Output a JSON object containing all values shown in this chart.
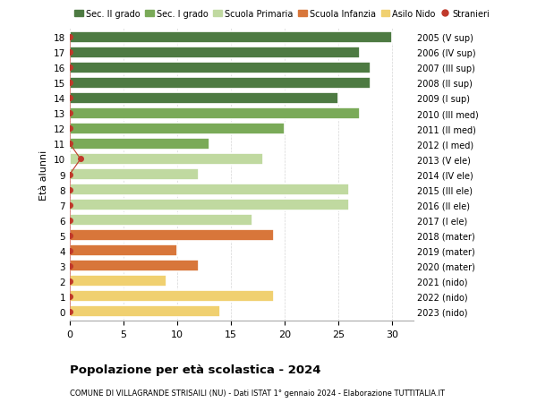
{
  "ages": [
    18,
    17,
    16,
    15,
    14,
    13,
    12,
    11,
    10,
    9,
    8,
    7,
    6,
    5,
    4,
    3,
    2,
    1,
    0
  ],
  "values": [
    30,
    27,
    28,
    28,
    25,
    27,
    20,
    13,
    18,
    12,
    26,
    26,
    17,
    19,
    10,
    12,
    9,
    19,
    14
  ],
  "stranieri": [
    0,
    0,
    0,
    0,
    0,
    0,
    0,
    0,
    1,
    0,
    0,
    0,
    0,
    0,
    0,
    0,
    0,
    0,
    0
  ],
  "right_labels": [
    "2005 (V sup)",
    "2006 (IV sup)",
    "2007 (III sup)",
    "2008 (II sup)",
    "2009 (I sup)",
    "2010 (III med)",
    "2011 (II med)",
    "2012 (I med)",
    "2013 (V ele)",
    "2014 (IV ele)",
    "2015 (III ele)",
    "2016 (II ele)",
    "2017 (I ele)",
    "2018 (mater)",
    "2019 (mater)",
    "2020 (mater)",
    "2021 (nido)",
    "2022 (nido)",
    "2023 (nido)"
  ],
  "bar_colors": [
    "#4d7a42",
    "#4d7a42",
    "#4d7a42",
    "#4d7a42",
    "#4d7a42",
    "#7aaa58",
    "#7aaa58",
    "#7aaa58",
    "#c0d9a0",
    "#c0d9a0",
    "#c0d9a0",
    "#c0d9a0",
    "#c0d9a0",
    "#d8763a",
    "#d8763a",
    "#d8763a",
    "#f0d070",
    "#f0d070",
    "#f0d070"
  ],
  "legend_labels": [
    "Sec. II grado",
    "Sec. I grado",
    "Scuola Primaria",
    "Scuola Infanzia",
    "Asilo Nido",
    "Stranieri"
  ],
  "legend_colors": [
    "#4d7a42",
    "#7aaa58",
    "#c0d9a0",
    "#d8763a",
    "#f0d070",
    "#c0392b"
  ],
  "ylabel_left": "Età alunni",
  "title": "Popolazione per età scolastica - 2024",
  "subtitle": "COMUNE DI VILLAGRANDE STRISAILI (NU) - Dati ISTAT 1° gennaio 2024 - Elaborazione TUTTITALIA.IT",
  "xlim": [
    0,
    32
  ],
  "xticks": [
    0,
    5,
    10,
    15,
    20,
    25,
    30
  ],
  "ylim": [
    -0.6,
    18.6
  ],
  "bg_color": "#ffffff",
  "bar_edge_color": "#ffffff",
  "stranieri_color": "#c0392b",
  "grid_color": "#cccccc",
  "bar_height": 0.78
}
